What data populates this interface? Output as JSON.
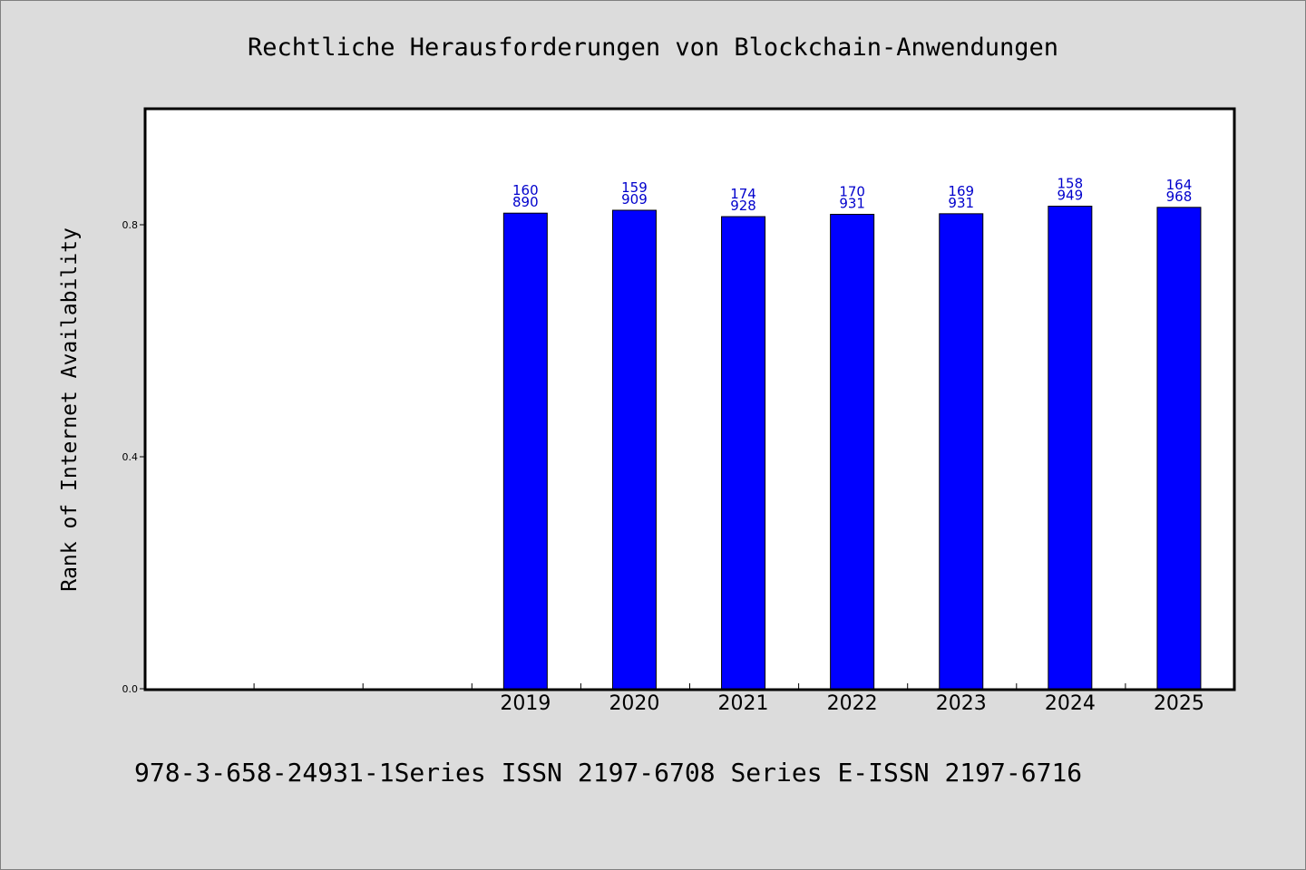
{
  "chart_data": {
    "type": "bar",
    "title": "Rechtliche Herausforderungen von Blockchain-Anwendungen",
    "ylabel": "Rank of Internet Availability",
    "xlabel": "",
    "categories": [
      "",
      "",
      "",
      "2019",
      "2020",
      "2021",
      "2022",
      "2023",
      "2024",
      "2025"
    ],
    "values": [
      null,
      null,
      null,
      0.82,
      0.825,
      0.814,
      0.818,
      0.819,
      0.832,
      0.83
    ],
    "data_labels": [
      null,
      null,
      null,
      [
        "160",
        "890"
      ],
      [
        "159",
        "909"
      ],
      [
        "174",
        "928"
      ],
      [
        "170",
        "931"
      ],
      [
        "169",
        "931"
      ],
      [
        "158",
        "949"
      ],
      [
        "164",
        "968"
      ]
    ],
    "yticks": [
      "0.0",
      "0.4",
      "0.8"
    ],
    "ytick_values": [
      0.0,
      0.4,
      0.8
    ],
    "ylim": [
      0,
      1.0
    ],
    "grid": false,
    "legend": "none",
    "bar_color": "#0000ff",
    "label_color": "#0000cc"
  },
  "footer": "978-3-658-24931-1Series ISSN 2197-6708 Series E-ISSN 2197-6716"
}
